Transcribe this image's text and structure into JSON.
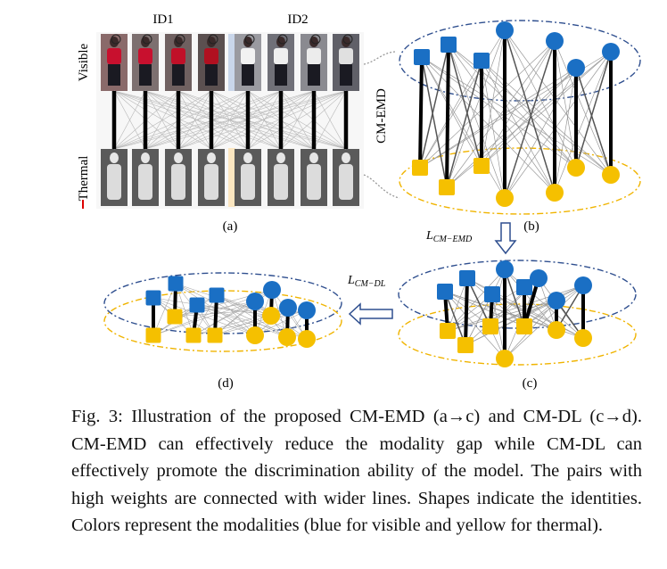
{
  "figure": {
    "panel_a": {
      "id_labels": [
        "ID1",
        "ID2"
      ],
      "row_labels": [
        "Visible",
        "Thermal"
      ],
      "sublabel": "(a)"
    },
    "panel_b": {
      "side_label": "CM-EMD",
      "sublabel": "(b)"
    },
    "panel_c": {
      "sublabel": "(c)"
    },
    "panel_d": {
      "sublabel": "(d)"
    },
    "arrow_labels": {
      "emd": {
        "base": "L",
        "sub": "CM−EMD"
      },
      "dl": {
        "base": "L",
        "sub": "CM−DL"
      }
    },
    "colors": {
      "visible": "#1a6fc4",
      "thermal": "#f5c000",
      "visible_ellipse": "#2f4f8f",
      "thermal_ellipse": "#f0b400",
      "arrow": "#2f4f8f"
    }
  },
  "caption": {
    "label": "Fig. 3:",
    "text": "Illustration of the proposed CM-EMD (a→c) and CM-DL (c→d). CM-EMD can effectively reduce the modality gap while CM-DL can effectively promote the discrimination ability of the model. The pairs with high weights are connected with wider lines. Shapes indicate the identities. Colors represent the modalities (blue for visible and yellow for thermal)."
  }
}
